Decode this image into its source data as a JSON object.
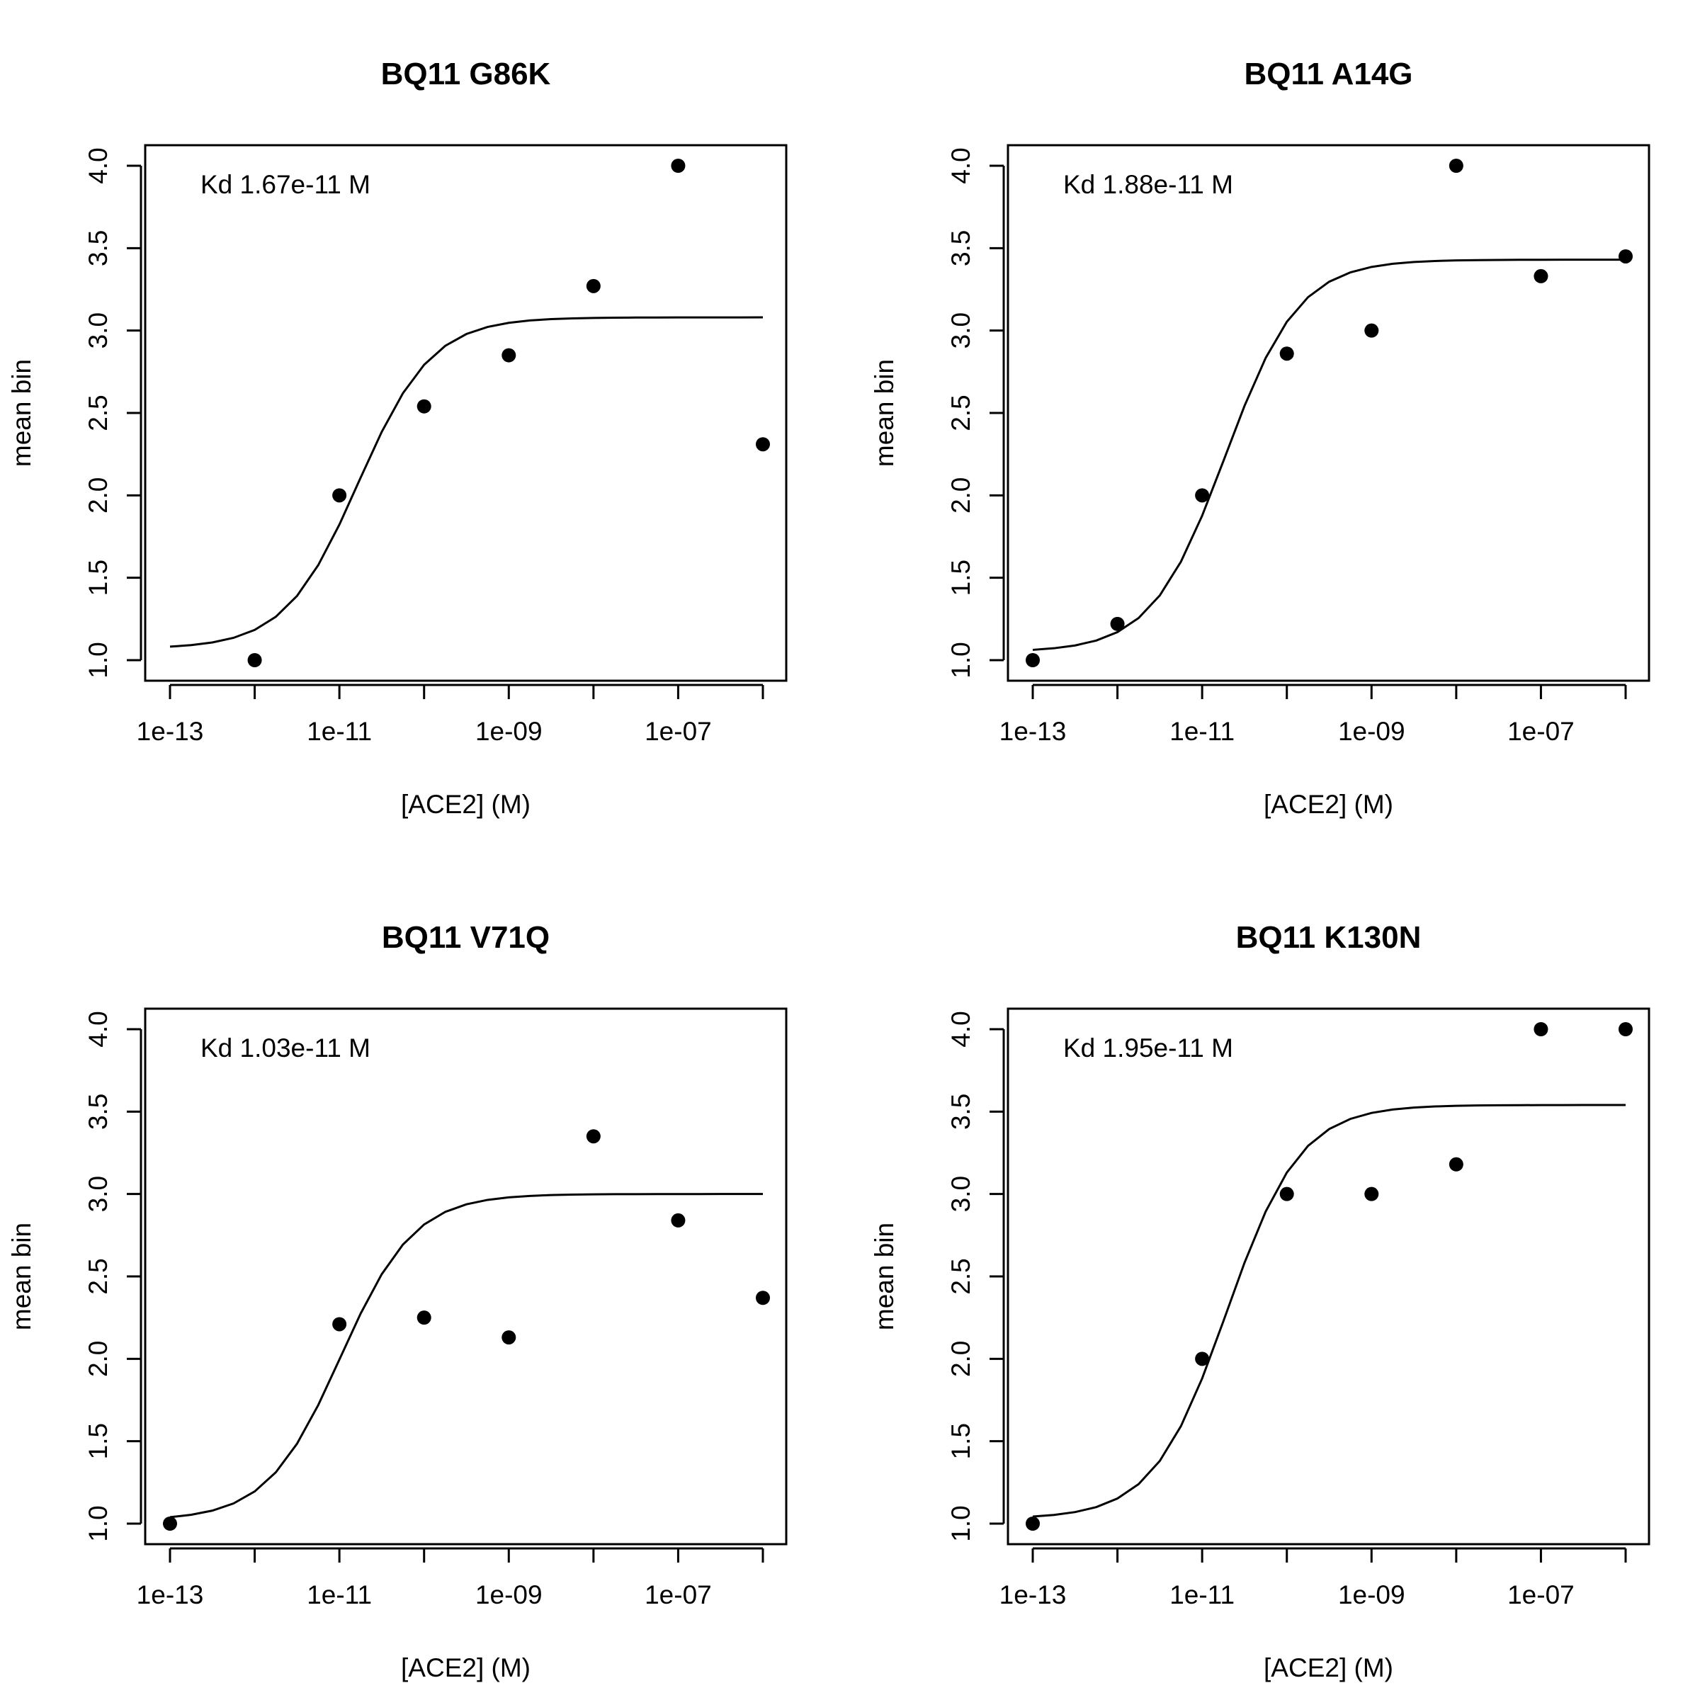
{
  "chart_data": [
    {
      "type": "scatter",
      "title": "BQ11 G86K",
      "xlabel": "[ACE2] (M)",
      "ylabel": "mean bin",
      "annotation": "Kd 1.67e-11 M",
      "x_scale": "log",
      "xlim": [
        1e-13,
        1e-06
      ],
      "ylim": [
        1.0,
        4.0
      ],
      "x_ticks": [
        1e-13,
        1e-12,
        1e-11,
        1e-10,
        1e-09,
        1e-08,
        1e-07,
        1e-06
      ],
      "x_tick_labels": [
        "1e-13",
        "",
        "1e-11",
        "",
        "1e-09",
        "",
        "1e-07",
        ""
      ],
      "y_ticks": [
        1.0,
        1.5,
        2.0,
        2.5,
        3.0,
        3.5,
        4.0
      ],
      "y_tick_labels": [
        "1.0",
        "1.5",
        "2.0",
        "2.5",
        "3.0",
        "3.5",
        "4.0"
      ],
      "points": {
        "x": [
          1e-12,
          1e-11,
          1e-10,
          1e-09,
          1e-08,
          1e-07,
          1e-06
        ],
        "y": [
          1.0,
          2.0,
          2.54,
          2.85,
          3.27,
          4.0,
          2.31
        ]
      },
      "fit": {
        "kd": 1.67e-11,
        "bottom": 1.07,
        "top": 3.08,
        "xmin": 1e-13,
        "xmax": 1e-06
      }
    },
    {
      "type": "scatter",
      "title": "BQ11 A14G",
      "xlabel": "[ACE2] (M)",
      "ylabel": "mean bin",
      "annotation": "Kd 1.88e-11 M",
      "x_scale": "log",
      "xlim": [
        1e-13,
        1e-06
      ],
      "ylim": [
        1.0,
        4.0
      ],
      "x_ticks": [
        1e-13,
        1e-12,
        1e-11,
        1e-10,
        1e-09,
        1e-08,
        1e-07,
        1e-06
      ],
      "x_tick_labels": [
        "1e-13",
        "",
        "1e-11",
        "",
        "1e-09",
        "",
        "1e-07",
        ""
      ],
      "y_ticks": [
        1.0,
        1.5,
        2.0,
        2.5,
        3.0,
        3.5,
        4.0
      ],
      "y_tick_labels": [
        "1.0",
        "1.5",
        "2.0",
        "2.5",
        "3.0",
        "3.5",
        "4.0"
      ],
      "points": {
        "x": [
          1e-13,
          1e-12,
          1e-11,
          1e-10,
          1e-09,
          1e-08,
          1e-07,
          1e-06
        ],
        "y": [
          1.0,
          1.22,
          2.0,
          2.86,
          3.0,
          4.0,
          3.33,
          3.45
        ]
      },
      "fit": {
        "kd": 1.88e-11,
        "bottom": 1.05,
        "top": 3.43,
        "xmin": 1e-13,
        "xmax": 1e-06
      }
    },
    {
      "type": "scatter",
      "title": "BQ11 V71Q",
      "xlabel": "[ACE2] (M)",
      "ylabel": "mean bin",
      "annotation": "Kd 1.03e-11 M",
      "x_scale": "log",
      "xlim": [
        1e-13,
        1e-06
      ],
      "ylim": [
        1.0,
        4.0
      ],
      "x_ticks": [
        1e-13,
        1e-12,
        1e-11,
        1e-10,
        1e-09,
        1e-08,
        1e-07,
        1e-06
      ],
      "x_tick_labels": [
        "1e-13",
        "",
        "1e-11",
        "",
        "1e-09",
        "",
        "1e-07",
        ""
      ],
      "y_ticks": [
        1.0,
        1.5,
        2.0,
        2.5,
        3.0,
        3.5,
        4.0
      ],
      "y_tick_labels": [
        "1.0",
        "1.5",
        "2.0",
        "2.5",
        "3.0",
        "3.5",
        "4.0"
      ],
      "points": {
        "x": [
          1e-13,
          1e-11,
          1e-10,
          1e-09,
          1e-08,
          1e-07,
          1e-06
        ],
        "y": [
          1.0,
          2.21,
          2.25,
          2.13,
          3.35,
          2.84,
          2.37
        ]
      },
      "fit": {
        "kd": 1.03e-11,
        "bottom": 1.02,
        "top": 3.0,
        "xmin": 1e-13,
        "xmax": 1e-06
      }
    },
    {
      "type": "scatter",
      "title": "BQ11 K130N",
      "xlabel": "[ACE2] (M)",
      "ylabel": "mean bin",
      "annotation": "Kd 1.95e-11 M",
      "x_scale": "log",
      "xlim": [
        1e-13,
        1e-06
      ],
      "ylim": [
        1.0,
        4.0
      ],
      "x_ticks": [
        1e-13,
        1e-12,
        1e-11,
        1e-10,
        1e-09,
        1e-08,
        1e-07,
        1e-06
      ],
      "x_tick_labels": [
        "1e-13",
        "",
        "1e-11",
        "",
        "1e-09",
        "",
        "1e-07",
        ""
      ],
      "y_ticks": [
        1.0,
        1.5,
        2.0,
        2.5,
        3.0,
        3.5,
        4.0
      ],
      "y_tick_labels": [
        "1.0",
        "1.5",
        "2.0",
        "2.5",
        "3.0",
        "3.5",
        "4.0"
      ],
      "points": {
        "x": [
          1e-13,
          1e-11,
          1e-10,
          1e-09,
          1e-08,
          1e-07,
          1e-06
        ],
        "y": [
          1.0,
          2.0,
          3.0,
          3.0,
          3.18,
          4.0,
          4.0
        ]
      },
      "fit": {
        "kd": 1.95e-11,
        "bottom": 1.03,
        "top": 3.54,
        "xmin": 1e-13,
        "xmax": 1e-06
      }
    }
  ]
}
